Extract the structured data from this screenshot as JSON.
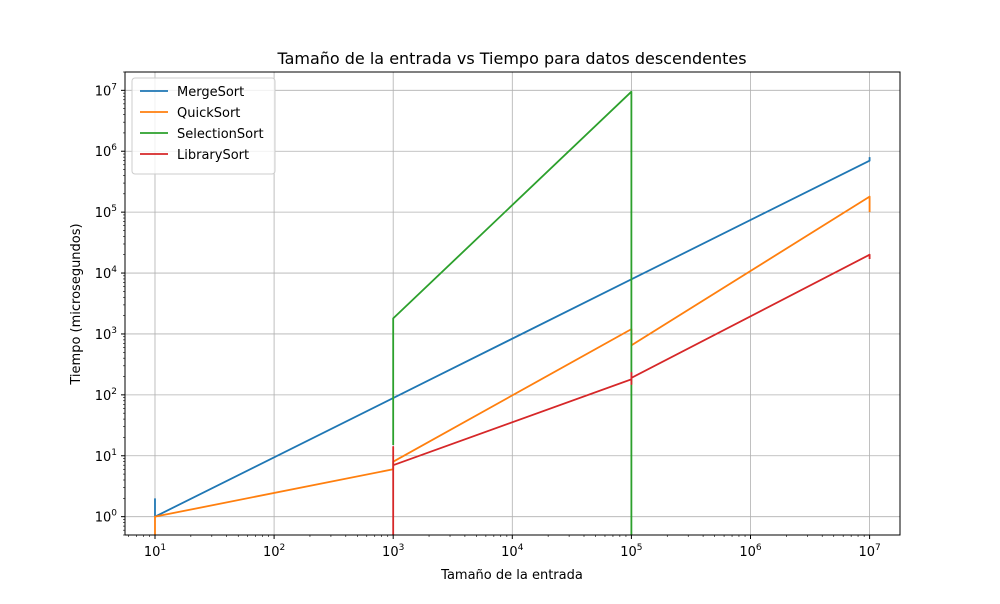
{
  "chart_data": {
    "type": "line",
    "title": "Tamaño de la entrada vs Tiempo para datos descendentes",
    "xlabel": "Tamaño de la entrada",
    "ylabel": "Tiempo (microsegundos)",
    "xscale": "log",
    "yscale": "log",
    "xlim": [
      5.6,
      18000000
    ],
    "ylim": [
      0.5,
      20000000
    ],
    "grid": true,
    "legend_position": "top-left",
    "x_ticks": [
      {
        "value": 10,
        "base": "10",
        "exp": "1"
      },
      {
        "value": 100,
        "base": "10",
        "exp": "2"
      },
      {
        "value": 1000,
        "base": "10",
        "exp": "3"
      },
      {
        "value": 10000,
        "base": "10",
        "exp": "4"
      },
      {
        "value": 100000,
        "base": "10",
        "exp": "5"
      },
      {
        "value": 1000000,
        "base": "10",
        "exp": "6"
      },
      {
        "value": 10000000,
        "base": "10",
        "exp": "7"
      }
    ],
    "y_ticks": [
      {
        "value": 1,
        "base": "10",
        "exp": "0"
      },
      {
        "value": 10,
        "base": "10",
        "exp": "1"
      },
      {
        "value": 100,
        "base": "10",
        "exp": "2"
      },
      {
        "value": 1000,
        "base": "10",
        "exp": "3"
      },
      {
        "value": 10000,
        "base": "10",
        "exp": "4"
      },
      {
        "value": 100000,
        "base": "10",
        "exp": "5"
      },
      {
        "value": 1000000,
        "base": "10",
        "exp": "6"
      },
      {
        "value": 10000000,
        "base": "10",
        "exp": "7"
      }
    ],
    "series": [
      {
        "name": "MergeSort",
        "color": "#1f77b4",
        "points": [
          [
            10,
            2
          ],
          [
            10,
            1
          ],
          [
            10000000,
            700000
          ],
          [
            10000000,
            800000
          ]
        ]
      },
      {
        "name": "QuickSort",
        "color": "#ff7f0e",
        "points": [
          [
            10,
            0.45
          ],
          [
            10,
            1
          ],
          [
            1000,
            6
          ],
          [
            1000,
            8
          ],
          [
            100000,
            1200
          ],
          [
            100000,
            650
          ],
          [
            10000000,
            180000
          ],
          [
            10000000,
            100000
          ]
        ]
      },
      {
        "name": "SelectionSort",
        "color": "#2ca02c",
        "points": [
          [
            1000,
            15
          ],
          [
            1000,
            1800
          ],
          [
            100000,
            9500000
          ],
          [
            100000,
            0.4
          ]
        ]
      },
      {
        "name": "LibrarySort",
        "color": "#d62728",
        "points": [
          [
            1000,
            0.4
          ],
          [
            1000,
            14
          ],
          [
            1000,
            7
          ],
          [
            100000,
            180
          ],
          [
            100000,
            230
          ],
          [
            100000,
            150
          ],
          [
            100000,
            190
          ],
          [
            10000000,
            20000
          ],
          [
            10000000,
            17000
          ]
        ]
      }
    ]
  }
}
